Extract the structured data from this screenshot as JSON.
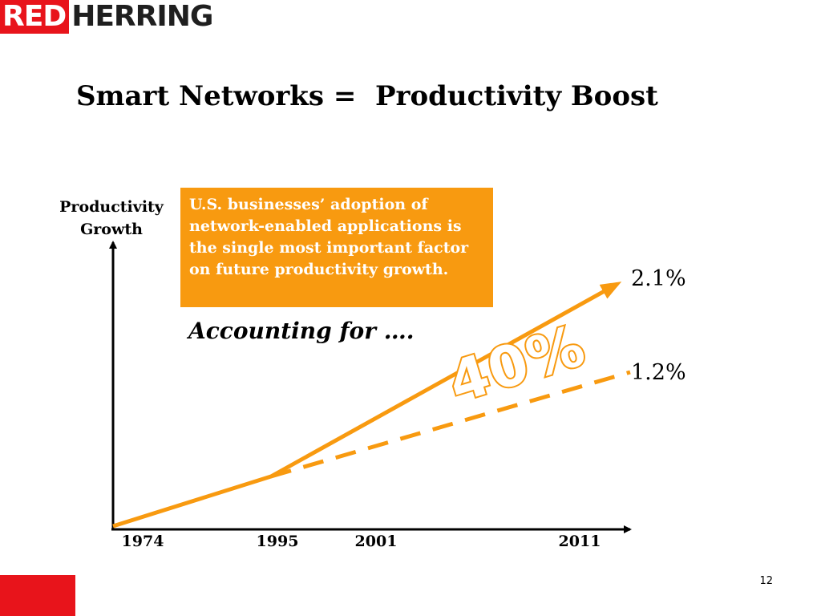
{
  "logo": {
    "part1": "RED",
    "part2": "HERRING"
  },
  "title": "Smart Networks =  Productivity Boost",
  "callout": {
    "text": "U.S. businesses’ adoption of network-enabled applications is the single most important factor on future productivity growth."
  },
  "accounting_text": "Accounting for ….",
  "highlight_pct": "40%",
  "page_number": "12",
  "colors": {
    "accent_orange": "#f89a10",
    "brand_red": "#e8141b",
    "axis": "#000000"
  },
  "chart_data": {
    "type": "line",
    "ylabel_line1": "Productivity",
    "ylabel_line2": "Growth",
    "xlabel": "",
    "x_ticks": [
      "1974",
      "1995",
      "2001",
      "2011"
    ],
    "series": [
      {
        "name": "",
        "style": "solid",
        "x": [
          1974,
          1995,
          2011
        ],
        "y_label_end": "2.1%"
      },
      {
        "name": "",
        "style": "dashed",
        "x": [
          1995,
          2011
        ],
        "y_label_end": "1.2%"
      }
    ],
    "grid": false,
    "legend": "none"
  }
}
